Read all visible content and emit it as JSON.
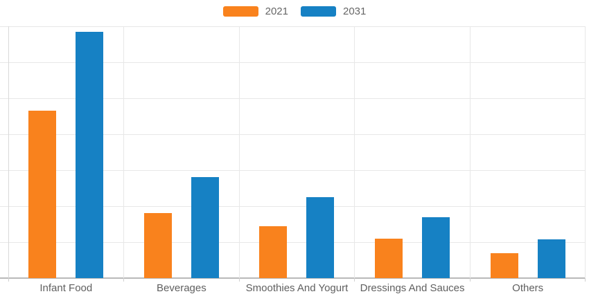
{
  "chart_data": {
    "type": "bar",
    "title": "",
    "xlabel": "",
    "ylabel": "",
    "categories": [
      "Infant Food",
      "Beverages",
      "Smoothies And Yogurt",
      "Dressings And Sauces",
      "Others"
    ],
    "series": [
      {
        "name": "2021",
        "color": "#f9821d",
        "values": [
          4.65,
          1.8,
          1.45,
          1.1,
          0.7
        ]
      },
      {
        "name": "2031",
        "color": "#1681c4",
        "values": [
          6.85,
          2.8,
          2.25,
          1.7,
          1.08
        ]
      }
    ],
    "ylim": [
      0,
      7
    ],
    "y_gridline_divisions": 7,
    "y_tick_labels_visible": false,
    "grid": true,
    "vertical_gridlines_at_category_boundaries": true,
    "legend_position": "top-center",
    "colors": {
      "gridline": "#e7e7e7",
      "axis_line": "#b9b9b9",
      "y_axis_line": "#d9d9d9",
      "label_text": "#5f5f5f",
      "legend_text": "#666666",
      "background": "#ffffff"
    }
  }
}
